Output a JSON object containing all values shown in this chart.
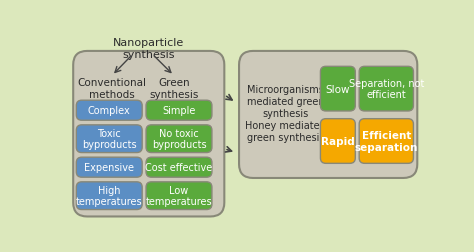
{
  "bg_color": "#dce8bc",
  "box_bg": "#cdc9ba",
  "blue_color": "#5b8ec4",
  "green_color": "#5aaa3c",
  "orange_color": "#f5a800",
  "text_dark": "#2b2b2b",
  "title": "Nanoparticle\nsynthesis",
  "conventional_label": "Conventional\nmethods",
  "green_label": "Green\nsynthesis",
  "blue_items": [
    "Complex",
    "Toxic\nbyproducts",
    "Expensive",
    "High\ntemperatures"
  ],
  "green_items": [
    "Simple",
    "No toxic\nbyproducts",
    "Cost effective",
    "Low\ntemperatures"
  ],
  "right_text": "Microorganisms\nmediated green\nsynthesis\nHoney mediated\ngreen synthesis",
  "slow_label": "Slow",
  "sep_not_eff_label": "Separation, not\nefficient",
  "rapid_label": "Rapid",
  "eff_sep_label": "Efficient\nseparation",
  "box_edge": "#888878"
}
